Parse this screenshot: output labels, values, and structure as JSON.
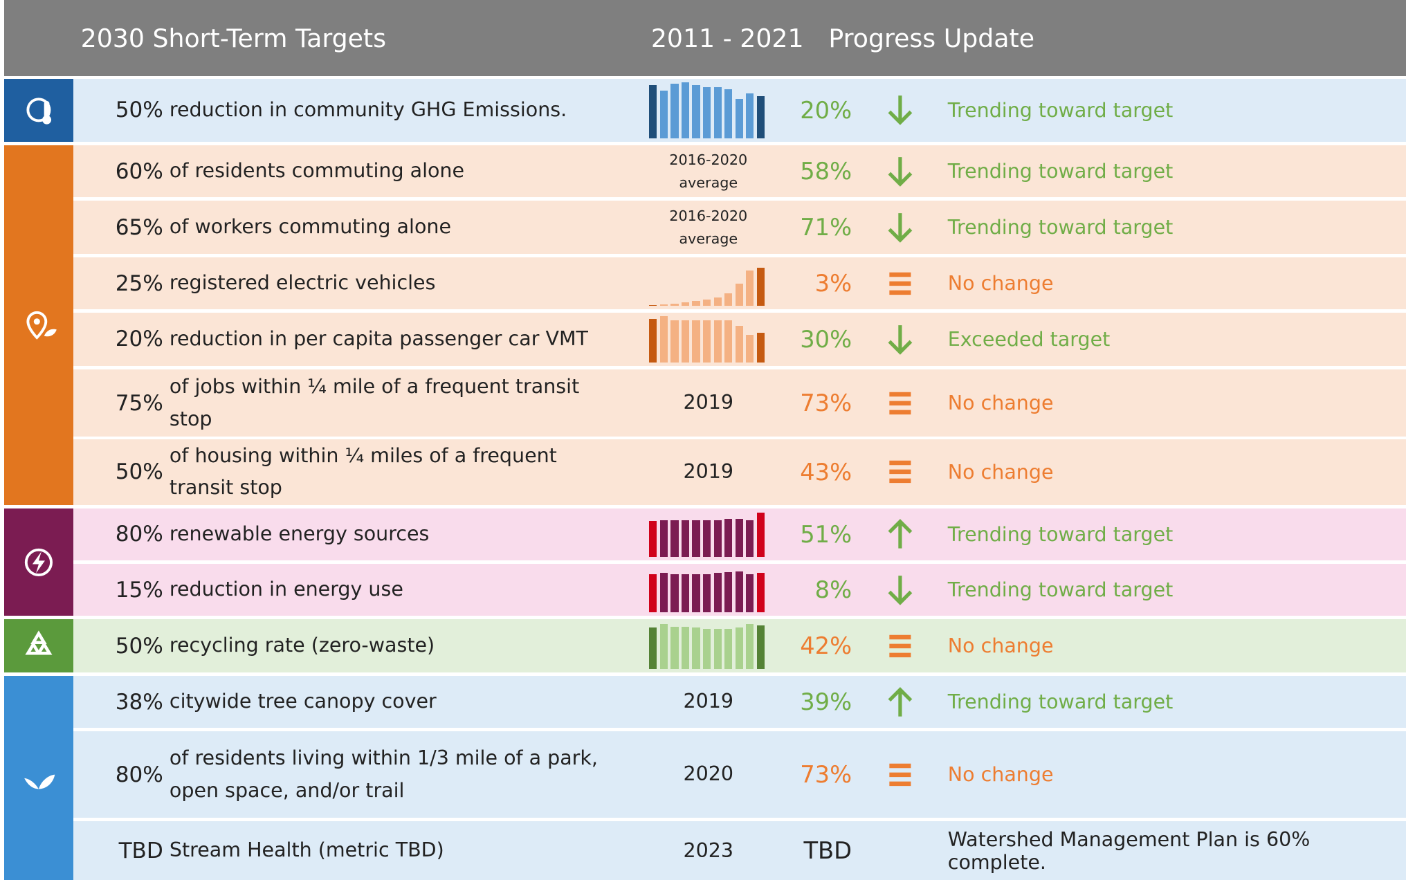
{
  "header": {
    "targets": "2030 Short-Term Targets",
    "period": "2011 - 2021",
    "progress": "Progress Update"
  },
  "groups": [
    {
      "icon_color": "#1f5fa0",
      "row_color": "#deebf7",
      "rows": [
        {
          "target": "50%",
          "description": "reduction in community GHG Emissions.",
          "sparkline": {
            "values": [
              95,
              85,
              98,
              100,
              95,
              92,
              92,
              88,
              70,
              80,
              75
            ],
            "color": "#5b9bd5",
            "accent": "#1f4e79"
          },
          "value": "20%",
          "trend": "down",
          "status": "Trending toward target",
          "color": "#70ad47"
        }
      ]
    },
    {
      "icon_color": "#e2761f",
      "row_color": "#fbe5d6",
      "rows": [
        {
          "target": "60%",
          "description": "of residents commuting alone",
          "period": "2016-2020 average",
          "value": "58%",
          "trend": "down",
          "status": "Trending toward target",
          "color": "#70ad47"
        },
        {
          "target": "65%",
          "description": "of workers commuting alone",
          "period": "2016-2020 average",
          "value": "71%",
          "trend": "down",
          "status": "Trending toward target",
          "color": "#70ad47"
        },
        {
          "target": "25%",
          "description": "registered electric vehicles",
          "sparkline": {
            "values": [
              2,
              3,
              5,
              8,
              10,
              13,
              18,
              28,
              50,
              78,
              85
            ],
            "color": "#f4b183",
            "accent": "#c55a11"
          },
          "value": "3%",
          "trend": "same",
          "status": "No change",
          "color": "#ed7d31"
        },
        {
          "target": "20%",
          "description": "reduction in per capita passenger car VMT",
          "sparkline": {
            "values": [
              95,
              100,
              92,
              92,
              92,
              92,
              92,
              92,
              80,
              60,
              65
            ],
            "color": "#f4b183",
            "accent": "#c55a11"
          },
          "value": "30%",
          "trend": "down",
          "status": "Exceeded target",
          "color": "#70ad47"
        },
        {
          "target": "75%",
          "description": "of jobs within ¼ mile of a frequent transit stop",
          "period": "2019",
          "value": "73%",
          "trend": "same",
          "status": "No change",
          "color": "#ed7d31"
        },
        {
          "target": "50%",
          "description": "of housing within ¼ miles of a frequent transit stop",
          "period": "2019",
          "value": "43%",
          "trend": "same",
          "status": "No change",
          "color": "#ed7d31"
        }
      ]
    },
    {
      "icon_color": "#7b1c52",
      "row_color": "#f9dcec",
      "rows": [
        {
          "target": "80%",
          "description": "renewable energy sources",
          "sparkline": {
            "values": [
              80,
              82,
              82,
              82,
              82,
              82,
              82,
              85,
              85,
              82,
              98
            ],
            "color": "#7b1c52",
            "accent": "#d0021b"
          },
          "value": "51%",
          "trend": "up",
          "status": "Trending toward target",
          "color": "#70ad47"
        },
        {
          "target": "15%",
          "description": "reduction in energy use",
          "sparkline": {
            "values": [
              85,
              88,
              85,
              85,
              85,
              85,
              88,
              90,
              92,
              85,
              88
            ],
            "color": "#7b1c52",
            "accent": "#d0021b"
          },
          "value": "8%",
          "trend": "down",
          "status": "Trending toward target",
          "color": "#70ad47"
        }
      ]
    },
    {
      "icon_color": "#5b9a3c",
      "row_color": "#e2efda",
      "rows": [
        {
          "target": "50%",
          "description": "recycling rate (zero-waste)",
          "sparkline": {
            "values": [
              90,
              98,
              92,
              92,
              90,
              88,
              88,
              88,
              90,
              98,
              95
            ],
            "color": "#a9d18e",
            "accent": "#548235"
          },
          "value": "42%",
          "trend": "same",
          "status": "No change",
          "color": "#ed7d31"
        }
      ]
    },
    {
      "icon_color": "#3b8fd4",
      "row_color": "#ddebf7",
      "rows": [
        {
          "target": "38%",
          "description": "citywide tree canopy cover",
          "period": "2019",
          "value": "39%",
          "trend": "up",
          "status": "Trending toward target",
          "color": "#70ad47"
        },
        {
          "target": "80%",
          "description": "of residents living within 1/3 mile of a park, open space, and/or trail",
          "period": "2020",
          "value": "73%",
          "trend": "same",
          "status": "No change",
          "color": "#ed7d31"
        },
        {
          "target": "TBD",
          "description": "Stream Health (metric TBD)",
          "period": "2023",
          "value": "TBD",
          "status": "Watershed Management Plan is 60% complete.",
          "color": "#222222"
        }
      ]
    }
  ]
}
